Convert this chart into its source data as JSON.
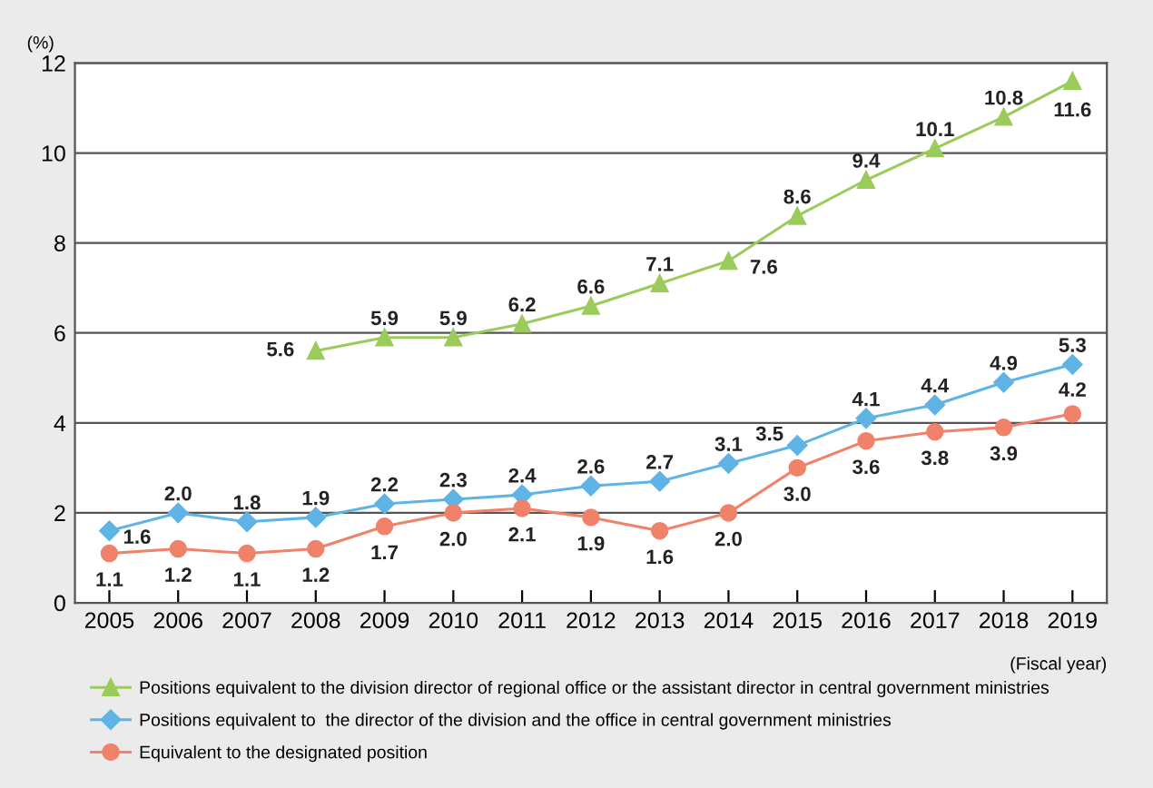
{
  "chart_data": {
    "type": "line",
    "ylabel": "(%)",
    "xlabel": "(Fiscal year)",
    "categories": [
      "2005",
      "2006",
      "2007",
      "2008",
      "2009",
      "2010",
      "2011",
      "2012",
      "2013",
      "2014",
      "2015",
      "2016",
      "2017",
      "2018",
      "2019"
    ],
    "series": [
      {
        "name": "Positions equivalent to the division director of regional office or the assistant director in central government ministries",
        "color": "#9bcb5a",
        "marker": "triangle",
        "values": [
          null,
          null,
          null,
          5.6,
          5.9,
          5.9,
          6.2,
          6.6,
          7.1,
          7.6,
          8.6,
          9.4,
          10.1,
          10.8,
          11.6
        ],
        "value_labels": [
          null,
          null,
          null,
          "5.6",
          "5.9",
          "5.9",
          "6.2",
          "6.6",
          "7.1",
          "7.6",
          "8.6",
          "9.4",
          "10.1",
          "10.8",
          "11.6"
        ]
      },
      {
        "name": "Positions equivalent to  the director of the division and the office in central government ministries",
        "color": "#5fb4e6",
        "marker": "diamond",
        "values": [
          1.6,
          2.0,
          1.8,
          1.9,
          2.2,
          2.3,
          2.4,
          2.6,
          2.7,
          3.1,
          3.5,
          4.1,
          4.4,
          4.9,
          5.3
        ],
        "value_labels": [
          "1.6",
          "2.0",
          "1.8",
          "1.9",
          "2.2",
          "2.3",
          "2.4",
          "2.6",
          "2.7",
          "3.1",
          "3.5",
          "4.1",
          "4.4",
          "4.9",
          "5.3"
        ]
      },
      {
        "name": "Equivalent to the designated position",
        "color": "#f0826a",
        "marker": "circle",
        "values": [
          1.1,
          1.2,
          1.1,
          1.2,
          1.7,
          2.0,
          2.1,
          1.9,
          1.6,
          2.0,
          3.0,
          3.6,
          3.8,
          3.9,
          4.2
        ],
        "value_labels": [
          "1.1",
          "1.2",
          "1.1",
          "1.2",
          "1.7",
          "2.0",
          "2.1",
          "1.9",
          "1.6",
          "2.0",
          "3.0",
          "3.6",
          "3.8",
          "3.9",
          "4.2"
        ]
      }
    ],
    "ylim": [
      0,
      12
    ],
    "yticks": [
      0,
      2,
      4,
      6,
      8,
      10,
      12
    ],
    "grid": "y",
    "legend": "bottom"
  }
}
